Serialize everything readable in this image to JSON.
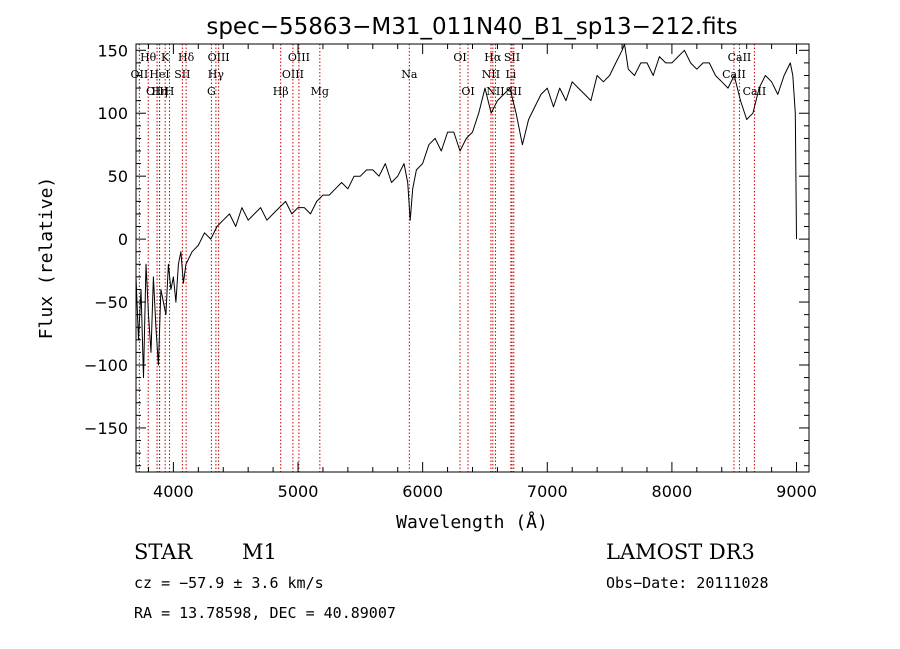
{
  "chart_data": {
    "type": "line",
    "title": "spec−55863−M31_011N40_B1_sp13−212.fits",
    "xlabel": "Wavelength (Å)",
    "ylabel": "Flux (relative)",
    "xlim": [
      3700,
      9100
    ],
    "ylim": [
      -185,
      155
    ],
    "x_ticks": [
      4000,
      5000,
      6000,
      7000,
      8000,
      9000
    ],
    "y_ticks": [
      -150,
      -100,
      -50,
      0,
      50,
      100,
      150
    ],
    "x_tick_labels": [
      "4000",
      "5000",
      "6000",
      "7000",
      "8000",
      "9000"
    ],
    "y_tick_labels": [
      "−150",
      "−100",
      "−50",
      "0",
      "50",
      "100",
      "150"
    ],
    "grid": false,
    "legend": "none",
    "line_color": "#000000",
    "marker_color": "#cc0000",
    "series": [
      {
        "x": [
          3700,
          3720,
          3740,
          3760,
          3780,
          3800,
          3820,
          3840,
          3860,
          3880,
          3900,
          3920,
          3940,
          3960,
          3980,
          4000,
          4020,
          4040,
          4060,
          4080,
          4100,
          4150,
          4200,
          4250,
          4300,
          4350,
          4400,
          4450,
          4500,
          4550,
          4600,
          4650,
          4700,
          4750,
          4800,
          4850,
          4900,
          4950,
          5000,
          5050,
          5100,
          5150,
          5200,
          5250,
          5300,
          5350,
          5400,
          5450,
          5500,
          5550,
          5600,
          5650,
          5700,
          5750,
          5800,
          5850,
          5880,
          5900,
          5920,
          5950,
          6000,
          6050,
          6100,
          6150,
          6200,
          6250,
          6300,
          6350,
          6400,
          6450,
          6500,
          6550,
          6600,
          6650,
          6700,
          6750,
          6800,
          6850,
          6900,
          6950,
          7000,
          7050,
          7100,
          7150,
          7200,
          7250,
          7300,
          7350,
          7400,
          7450,
          7500,
          7550,
          7600,
          7620,
          7650,
          7700,
          7750,
          7800,
          7850,
          7900,
          7950,
          8000,
          8050,
          8100,
          8150,
          8200,
          8250,
          8300,
          8350,
          8400,
          8450,
          8500,
          8550,
          8600,
          8650,
          8700,
          8750,
          8800,
          8850,
          8900,
          8950,
          8970,
          8990,
          9000
        ],
        "y": [
          -30,
          -80,
          -40,
          -110,
          -20,
          -60,
          -90,
          -30,
          -70,
          -100,
          -40,
          -50,
          -60,
          -20,
          -40,
          -30,
          -50,
          -20,
          -10,
          -35,
          -20,
          -10,
          -5,
          5,
          0,
          10,
          15,
          20,
          10,
          25,
          15,
          20,
          25,
          15,
          20,
          25,
          30,
          20,
          25,
          25,
          20,
          30,
          35,
          35,
          40,
          45,
          40,
          50,
          50,
          55,
          55,
          50,
          60,
          45,
          50,
          60,
          45,
          15,
          40,
          55,
          60,
          75,
          80,
          70,
          85,
          85,
          70,
          80,
          85,
          100,
          120,
          100,
          110,
          115,
          120,
          100,
          75,
          95,
          105,
          115,
          120,
          105,
          120,
          110,
          125,
          120,
          115,
          110,
          130,
          125,
          130,
          140,
          150,
          155,
          135,
          130,
          140,
          140,
          130,
          145,
          140,
          140,
          145,
          150,
          140,
          135,
          140,
          140,
          130,
          125,
          120,
          130,
          110,
          95,
          100,
          120,
          130,
          125,
          115,
          130,
          140,
          130,
          100,
          0
        ]
      }
    ],
    "line_markers": [
      {
        "name": "Hθ",
        "wavelength": 3798,
        "row": 0
      },
      {
        "name": "OII",
        "wavelength": 3727,
        "row": 1
      },
      {
        "name": "OIII",
        "wavelength": 3869,
        "row": 2
      },
      {
        "name": "K",
        "wavelength": 3934,
        "row": 0
      },
      {
        "name": "HeI",
        "wavelength": 3889,
        "row": 1
      },
      {
        "name": "Hη",
        "wavelength": 3889,
        "row": 2
      },
      {
        "name": "H",
        "wavelength": 3969,
        "row": 2
      },
      {
        "name": "SII",
        "wavelength": 4072,
        "row": 1
      },
      {
        "name": "Hδ",
        "wavelength": 4102,
        "row": 0
      },
      {
        "name": "OIII",
        "wavelength": 4363,
        "row": 0
      },
      {
        "name": "Hγ",
        "wavelength": 4341,
        "row": 1
      },
      {
        "name": "G",
        "wavelength": 4305,
        "row": 2
      },
      {
        "name": "Hβ",
        "wavelength": 4861,
        "row": 2
      },
      {
        "name": "OIII",
        "wavelength": 5007,
        "row": 0
      },
      {
        "name": "OIII",
        "wavelength": 4959,
        "row": 1
      },
      {
        "name": "Mg",
        "wavelength": 5175,
        "row": 2
      },
      {
        "name": "Na",
        "wavelength": 5893,
        "row": 1
      },
      {
        "name": "OI",
        "wavelength": 6300,
        "row": 0
      },
      {
        "name": "OI",
        "wavelength": 6364,
        "row": 2
      },
      {
        "name": "Hα",
        "wavelength": 6563,
        "row": 0
      },
      {
        "name": "NII",
        "wavelength": 6548,
        "row": 1
      },
      {
        "name": "NII",
        "wavelength": 6584,
        "row": 2
      },
      {
        "name": "SII",
        "wavelength": 6717,
        "row": 0
      },
      {
        "name": "Li",
        "wavelength": 6708,
        "row": 1
      },
      {
        "name": "SII",
        "wavelength": 6731,
        "row": 2
      },
      {
        "name": "CaII",
        "wavelength": 8542,
        "row": 0
      },
      {
        "name": "CaII",
        "wavelength": 8498,
        "row": 1
      },
      {
        "name": "CaII",
        "wavelength": 8662,
        "row": 2
      }
    ]
  },
  "info": {
    "class": "STAR",
    "subclass": "M1",
    "survey": "LAMOST DR3",
    "cz": "cz = −57.9 ± 3.6 km/s",
    "obs_date": "Obs−Date: 20111028",
    "coords": "RA =  13.78598, DEC =  40.89007"
  }
}
